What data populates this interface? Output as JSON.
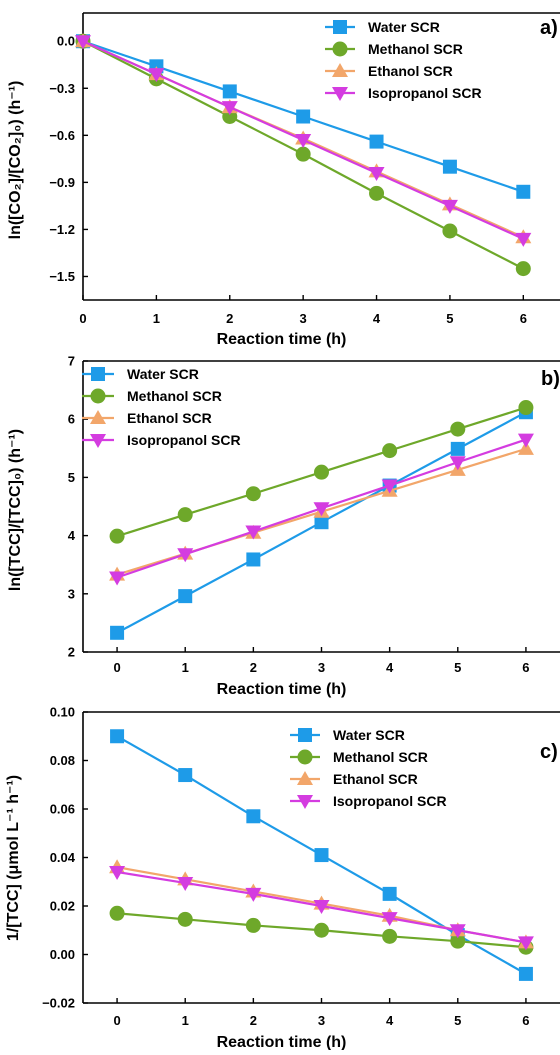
{
  "panels": [
    {
      "panel_label": "a)",
      "ylabel": "ln([CO₂]/[CO₂]₀) (h⁻¹)"
    },
    {
      "panel_label": "b)",
      "ylabel": "ln([TCC]/[TCC]₀) (h⁻¹)"
    },
    {
      "panel_label": "c)",
      "ylabel": "1/[TCC] (μmol L⁻¹ h⁻¹)"
    }
  ],
  "colors": {
    "water": "#1E9BE8",
    "methanol": "#6EA82A",
    "ethanol": "#F2A66A",
    "isopropanol": "#D43CE0"
  },
  "chart_data": [
    {
      "type": "line",
      "title": "",
      "xlabel": "Reaction time (h)",
      "ylabel": "ln([CO₂]/[CO₂]₀) (h⁻¹)",
      "x": [
        0,
        1,
        2,
        3,
        4,
        5,
        6
      ],
      "xticks": [
        "0",
        "1",
        "2",
        "3",
        "4",
        "5",
        "6"
      ],
      "yticks": [
        "0.0",
        "−0.3",
        "−0.6",
        "−0.9",
        "−1.2",
        "−1.5"
      ],
      "xlim": [
        0,
        6.5
      ],
      "ylim": [
        -1.65,
        0.18
      ],
      "legend_position": "top-right",
      "series": [
        {
          "name": "Water SCR",
          "color": "#1E9BE8",
          "marker": "square",
          "values": [
            0,
            -0.16,
            -0.32,
            -0.48,
            -0.64,
            -0.8,
            -0.96
          ]
        },
        {
          "name": "Methanol SCR",
          "color": "#6EA82A",
          "marker": "circle",
          "values": [
            0,
            -0.24,
            -0.48,
            -0.72,
            -0.97,
            -1.21,
            -1.45
          ]
        },
        {
          "name": "Ethanol SCR",
          "color": "#F2A66A",
          "marker": "triangle-up",
          "values": [
            0,
            -0.21,
            -0.42,
            -0.62,
            -0.83,
            -1.04,
            -1.25
          ]
        },
        {
          "name": "Isopropanol SCR",
          "color": "#D43CE0",
          "marker": "triangle-down",
          "values": [
            0,
            -0.21,
            -0.42,
            -0.63,
            -0.84,
            -1.05,
            -1.26
          ]
        }
      ]
    },
    {
      "type": "line",
      "title": "",
      "xlabel": "Reaction time (h)",
      "ylabel": "ln([TCC]/[TCC]₀) (h⁻¹)",
      "x": [
        0,
        1,
        2,
        3,
        4,
        5,
        6
      ],
      "xticks": [
        "0",
        "1",
        "2",
        "3",
        "4",
        "5",
        "6"
      ],
      "yticks": [
        "2",
        "3",
        "4",
        "5",
        "6",
        "7"
      ],
      "xlim": [
        -0.5,
        6.5
      ],
      "ylim": [
        2,
        7
      ],
      "legend_position": "top-left",
      "series": [
        {
          "name": "Water SCR",
          "color": "#1E9BE8",
          "marker": "square",
          "values": [
            2.33,
            2.96,
            3.59,
            4.23,
            4.86,
            5.49,
            6.12
          ]
        },
        {
          "name": "Methanol SCR",
          "color": "#6EA82A",
          "marker": "circle",
          "values": [
            3.99,
            4.36,
            4.72,
            5.09,
            5.46,
            5.83,
            6.2
          ]
        },
        {
          "name": "Ethanol SCR",
          "color": "#F2A66A",
          "marker": "triangle-up",
          "values": [
            3.33,
            3.69,
            4.05,
            4.41,
            4.77,
            5.13,
            5.49
          ]
        },
        {
          "name": "Isopropanol SCR",
          "color": "#D43CE0",
          "marker": "triangle-down",
          "values": [
            3.28,
            3.68,
            4.07,
            4.47,
            4.86,
            5.26,
            5.65
          ]
        }
      ]
    },
    {
      "type": "line",
      "title": "",
      "xlabel": "Reaction time (h)",
      "ylabel": "1/[TCC] (μmol L⁻¹ h⁻¹)",
      "x": [
        0,
        1,
        2,
        3,
        4,
        5,
        6
      ],
      "xticks": [
        "0",
        "1",
        "2",
        "3",
        "4",
        "5",
        "6"
      ],
      "yticks": [
        "−0.02",
        "0.00",
        "0.02",
        "0.04",
        "0.06",
        "0.08",
        "0.10"
      ],
      "xlim": [
        -0.5,
        6.5
      ],
      "ylim": [
        -0.02,
        0.1
      ],
      "legend_position": "top-right",
      "series": [
        {
          "name": "Water SCR",
          "color": "#1E9BE8",
          "marker": "square",
          "values": [
            0.09,
            0.074,
            0.057,
            0.041,
            0.025,
            0.008,
            -0.008
          ]
        },
        {
          "name": "Methanol SCR",
          "color": "#6EA82A",
          "marker": "circle",
          "values": [
            0.017,
            0.0145,
            0.012,
            0.01,
            0.0075,
            0.0055,
            0.003
          ]
        },
        {
          "name": "Ethanol SCR",
          "color": "#F2A66A",
          "marker": "triangle-up",
          "values": [
            0.036,
            0.031,
            0.026,
            0.021,
            0.016,
            0.01,
            0.005
          ]
        },
        {
          "name": "Isopropanol SCR",
          "color": "#D43CE0",
          "marker": "triangle-down",
          "values": [
            0.034,
            0.0295,
            0.025,
            0.02,
            0.015,
            0.01,
            0.005
          ]
        }
      ]
    }
  ]
}
